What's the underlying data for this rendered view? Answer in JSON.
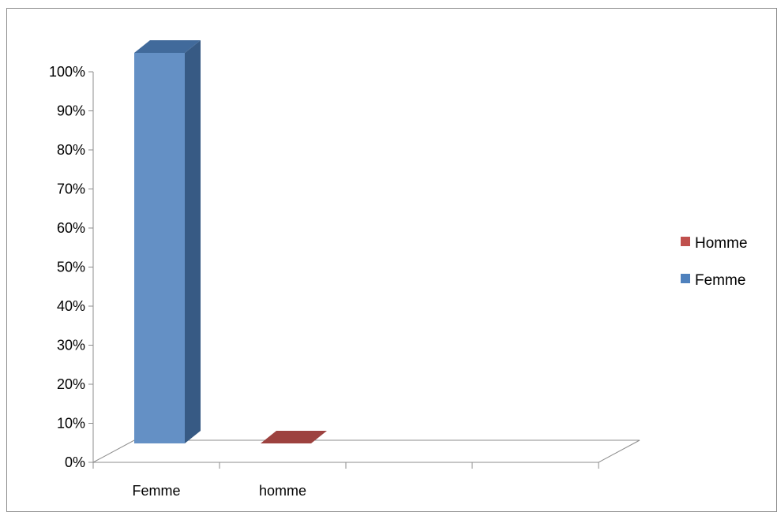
{
  "chart_data": {
    "type": "bar",
    "categories": [
      "Femme",
      "homme",
      "",
      ""
    ],
    "series": [
      {
        "name": "Femme",
        "values": [
          100,
          null,
          null,
          null
        ],
        "color": "#4F81BD"
      },
      {
        "name": "Homme",
        "values": [
          null,
          0,
          null,
          null
        ],
        "color": "#C0504D"
      }
    ],
    "ylim": [
      0,
      100
    ],
    "yticks": [
      "0%",
      "10%",
      "20%",
      "30%",
      "40%",
      "50%",
      "60%",
      "70%",
      "80%",
      "90%",
      "100%"
    ],
    "grid": false,
    "legend": {
      "position": "right",
      "entries": [
        {
          "label": "Homme",
          "color": "#C0504D"
        },
        {
          "label": "Femme",
          "color": "#4F81BD"
        }
      ]
    },
    "style": "3d-column"
  }
}
